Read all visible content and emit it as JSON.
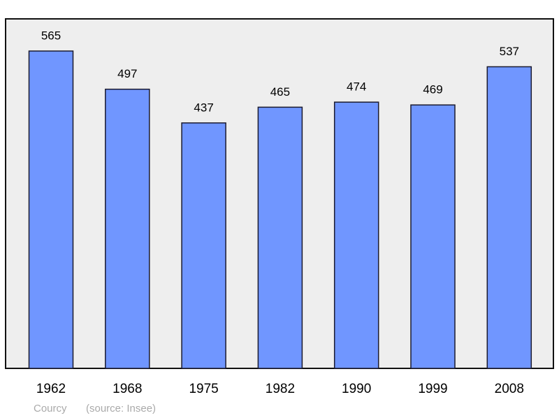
{
  "chart_data": {
    "type": "bar",
    "title": "Courcy",
    "source": "(source: Insee)",
    "categories": [
      "1962",
      "1968",
      "1975",
      "1982",
      "1990",
      "1999",
      "2008"
    ],
    "values": [
      565,
      497,
      437,
      465,
      474,
      469,
      537
    ],
    "color": "#7096ff"
  }
}
